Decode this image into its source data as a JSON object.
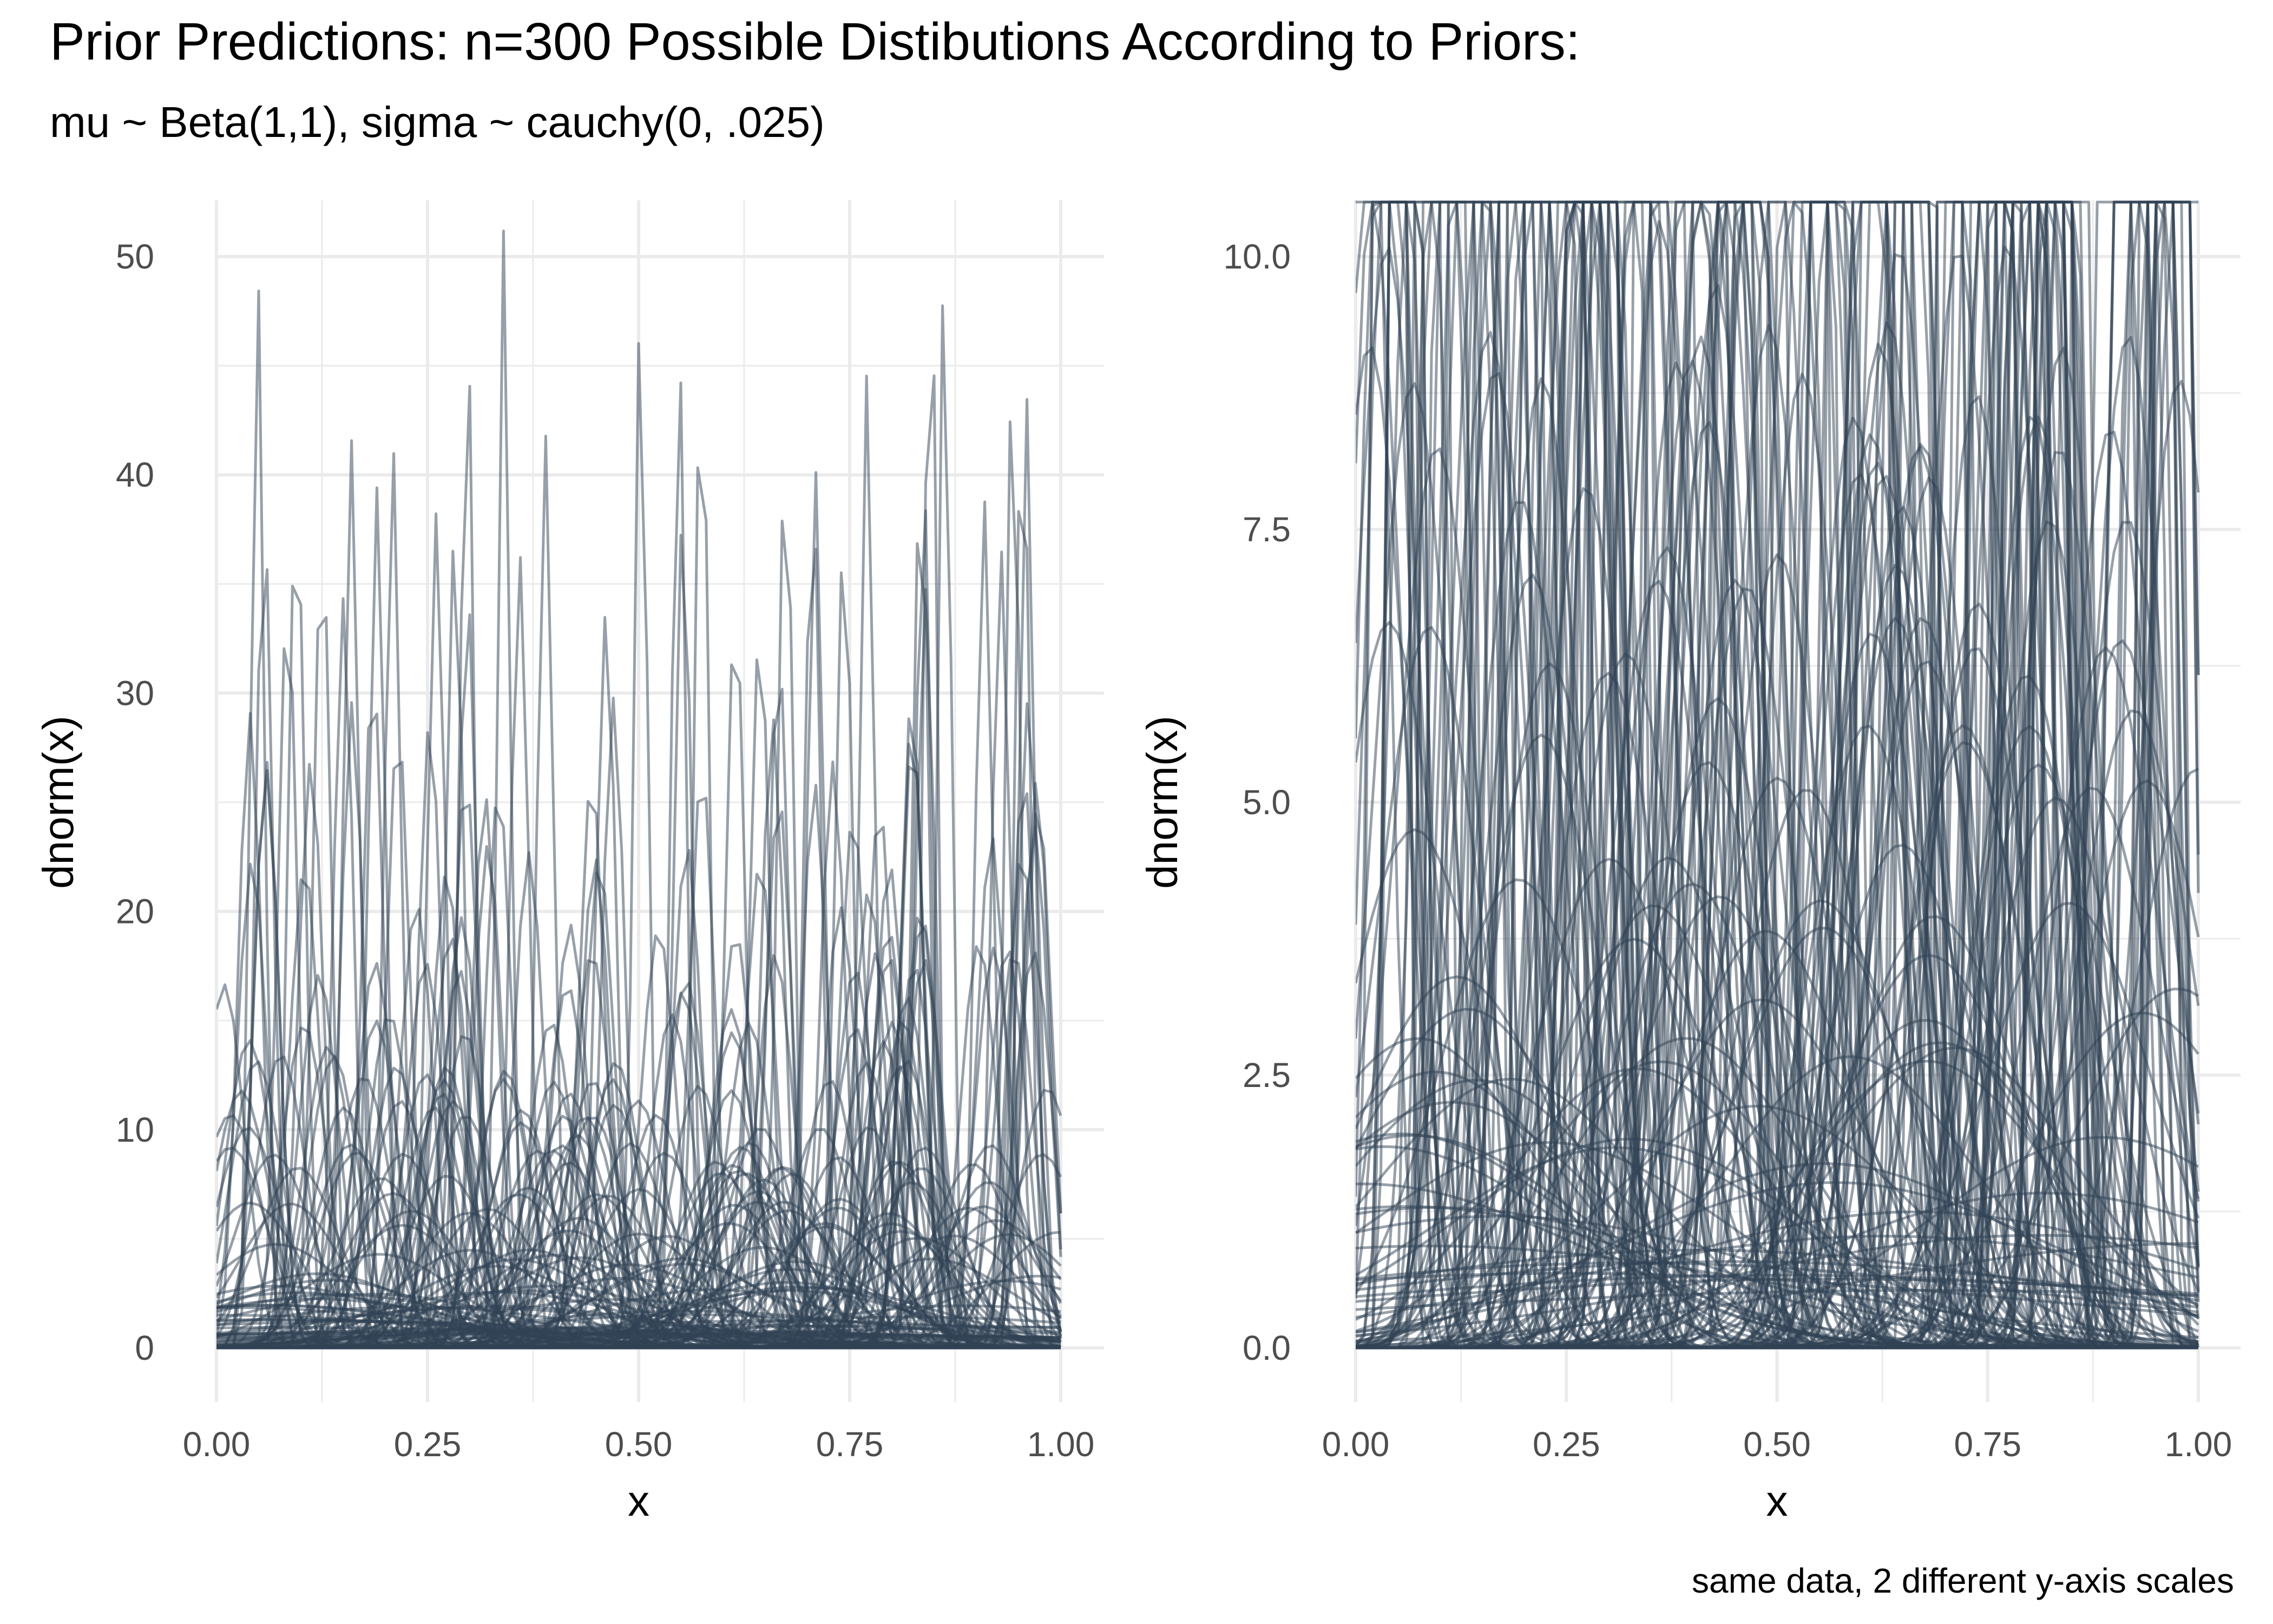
{
  "title": "Prior Predictions: n=300 Possible Distibutions According to Priors:",
  "subtitle": "mu ~ Beta(1,1), sigma ~ cauchy(0, .025)",
  "caption": "same data, 2 different y-axis scales",
  "colors": {
    "line": "#2f4253",
    "grid": "#ebebeb",
    "text": "#000000",
    "tick_text": "#4d4d4d"
  },
  "chart_data": [
    {
      "type": "line",
      "description_series": "300 normal density curves dnorm(x, mu, sigma) with mu ~ Beta(1,1) and sigma ~ cauchy(0, .025), drawn semi-transparent; y-axis clipped at 50",
      "n_series": 300,
      "xlabel": "x",
      "ylabel": "dnorm(x)",
      "xlim": [
        0,
        1
      ],
      "ylim": [
        0,
        50
      ],
      "x_ticks": [
        "0.00",
        "0.25",
        "0.50",
        "0.75",
        "1.00"
      ],
      "y_ticks": [
        "0",
        "10",
        "20",
        "30",
        "40",
        "50"
      ],
      "grid": true,
      "legend": "none"
    },
    {
      "type": "line",
      "description_series": "same 300 normal density curves, y-axis clipped at 10",
      "n_series": 300,
      "xlabel": "x",
      "ylabel": "dnorm(x)",
      "xlim": [
        0,
        1
      ],
      "ylim": [
        0,
        10
      ],
      "x_ticks": [
        "0.00",
        "0.25",
        "0.50",
        "0.75",
        "1.00"
      ],
      "y_ticks": [
        "0.0",
        "2.5",
        "5.0",
        "7.5",
        "10.0"
      ],
      "grid": true,
      "legend": "none"
    }
  ]
}
